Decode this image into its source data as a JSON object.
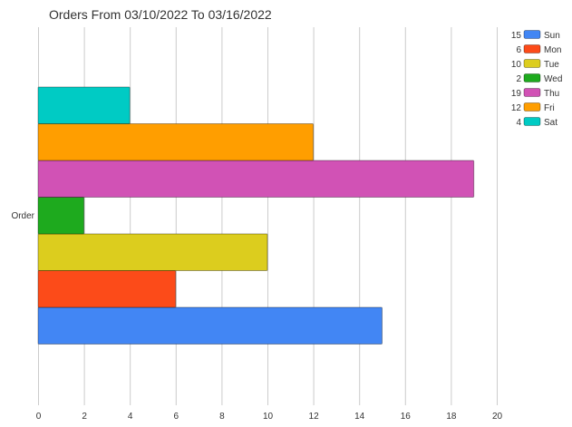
{
  "chart_data": {
    "type": "bar",
    "orientation": "horizontal",
    "title": "Orders From 03/10/2022 To 03/16/2022",
    "category_label": "Order",
    "xlim": [
      0,
      20
    ],
    "xticks": [
      0,
      2,
      4,
      6,
      8,
      10,
      12,
      14,
      16,
      18,
      20
    ],
    "grid": true,
    "legend_position": "right",
    "series": [
      {
        "name": "Sun",
        "value": 15,
        "color": "#4286f4"
      },
      {
        "name": "Mon",
        "value": 6,
        "color": "#fc4b19"
      },
      {
        "name": "Tue",
        "value": 10,
        "color": "#dccd1e"
      },
      {
        "name": "Wed",
        "value": 2,
        "color": "#1eaa1e"
      },
      {
        "name": "Thu",
        "value": 19,
        "color": "#d152b5"
      },
      {
        "name": "Fri",
        "value": 12,
        "color": "#ff9e00"
      },
      {
        "name": "Sat",
        "value": 4,
        "color": "#00cbc4"
      }
    ]
  }
}
